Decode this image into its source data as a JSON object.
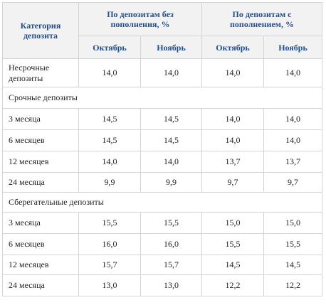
{
  "table": {
    "header": {
      "category": "Категория депозита",
      "groups": [
        "По депозитам без пополнения, %",
        "По депозитам с пополнением, %"
      ],
      "months": [
        "Октябрь",
        "Ноябрь",
        "Октябрь",
        "Ноябрь"
      ]
    },
    "rows": [
      {
        "label": "Несрочные депозиты",
        "values": [
          "14,0",
          "14,0",
          "14,0",
          "14,0"
        ]
      },
      {
        "section": "Срочные депозиты"
      },
      {
        "label": "3 месяца",
        "values": [
          "14,5",
          "14,5",
          "14,0",
          "14,0"
        ]
      },
      {
        "label": "6 месяцев",
        "values": [
          "14,5",
          "14,5",
          "14,0",
          "14,0"
        ]
      },
      {
        "label": "12 месяцев",
        "values": [
          "14,0",
          "14,0",
          "13,7",
          "13,7"
        ]
      },
      {
        "label": "24 месяца",
        "values": [
          "9,9",
          "9,9",
          "9,7",
          "9,7"
        ]
      },
      {
        "section": "Сберегательные депозиты"
      },
      {
        "label": "3 месяца",
        "values": [
          "15,5",
          "15,5",
          "15,0",
          "15,0"
        ]
      },
      {
        "label": "6 месяцев",
        "values": [
          "16,0",
          "16,0",
          "15,5",
          "15,5"
        ]
      },
      {
        "label": "12 месяцев",
        "values": [
          "15,7",
          "15,7",
          "14,5",
          "14,5"
        ]
      },
      {
        "label": "24 месяца",
        "values": [
          "13,0",
          "13,0",
          "12,2",
          "12,2"
        ]
      }
    ]
  }
}
